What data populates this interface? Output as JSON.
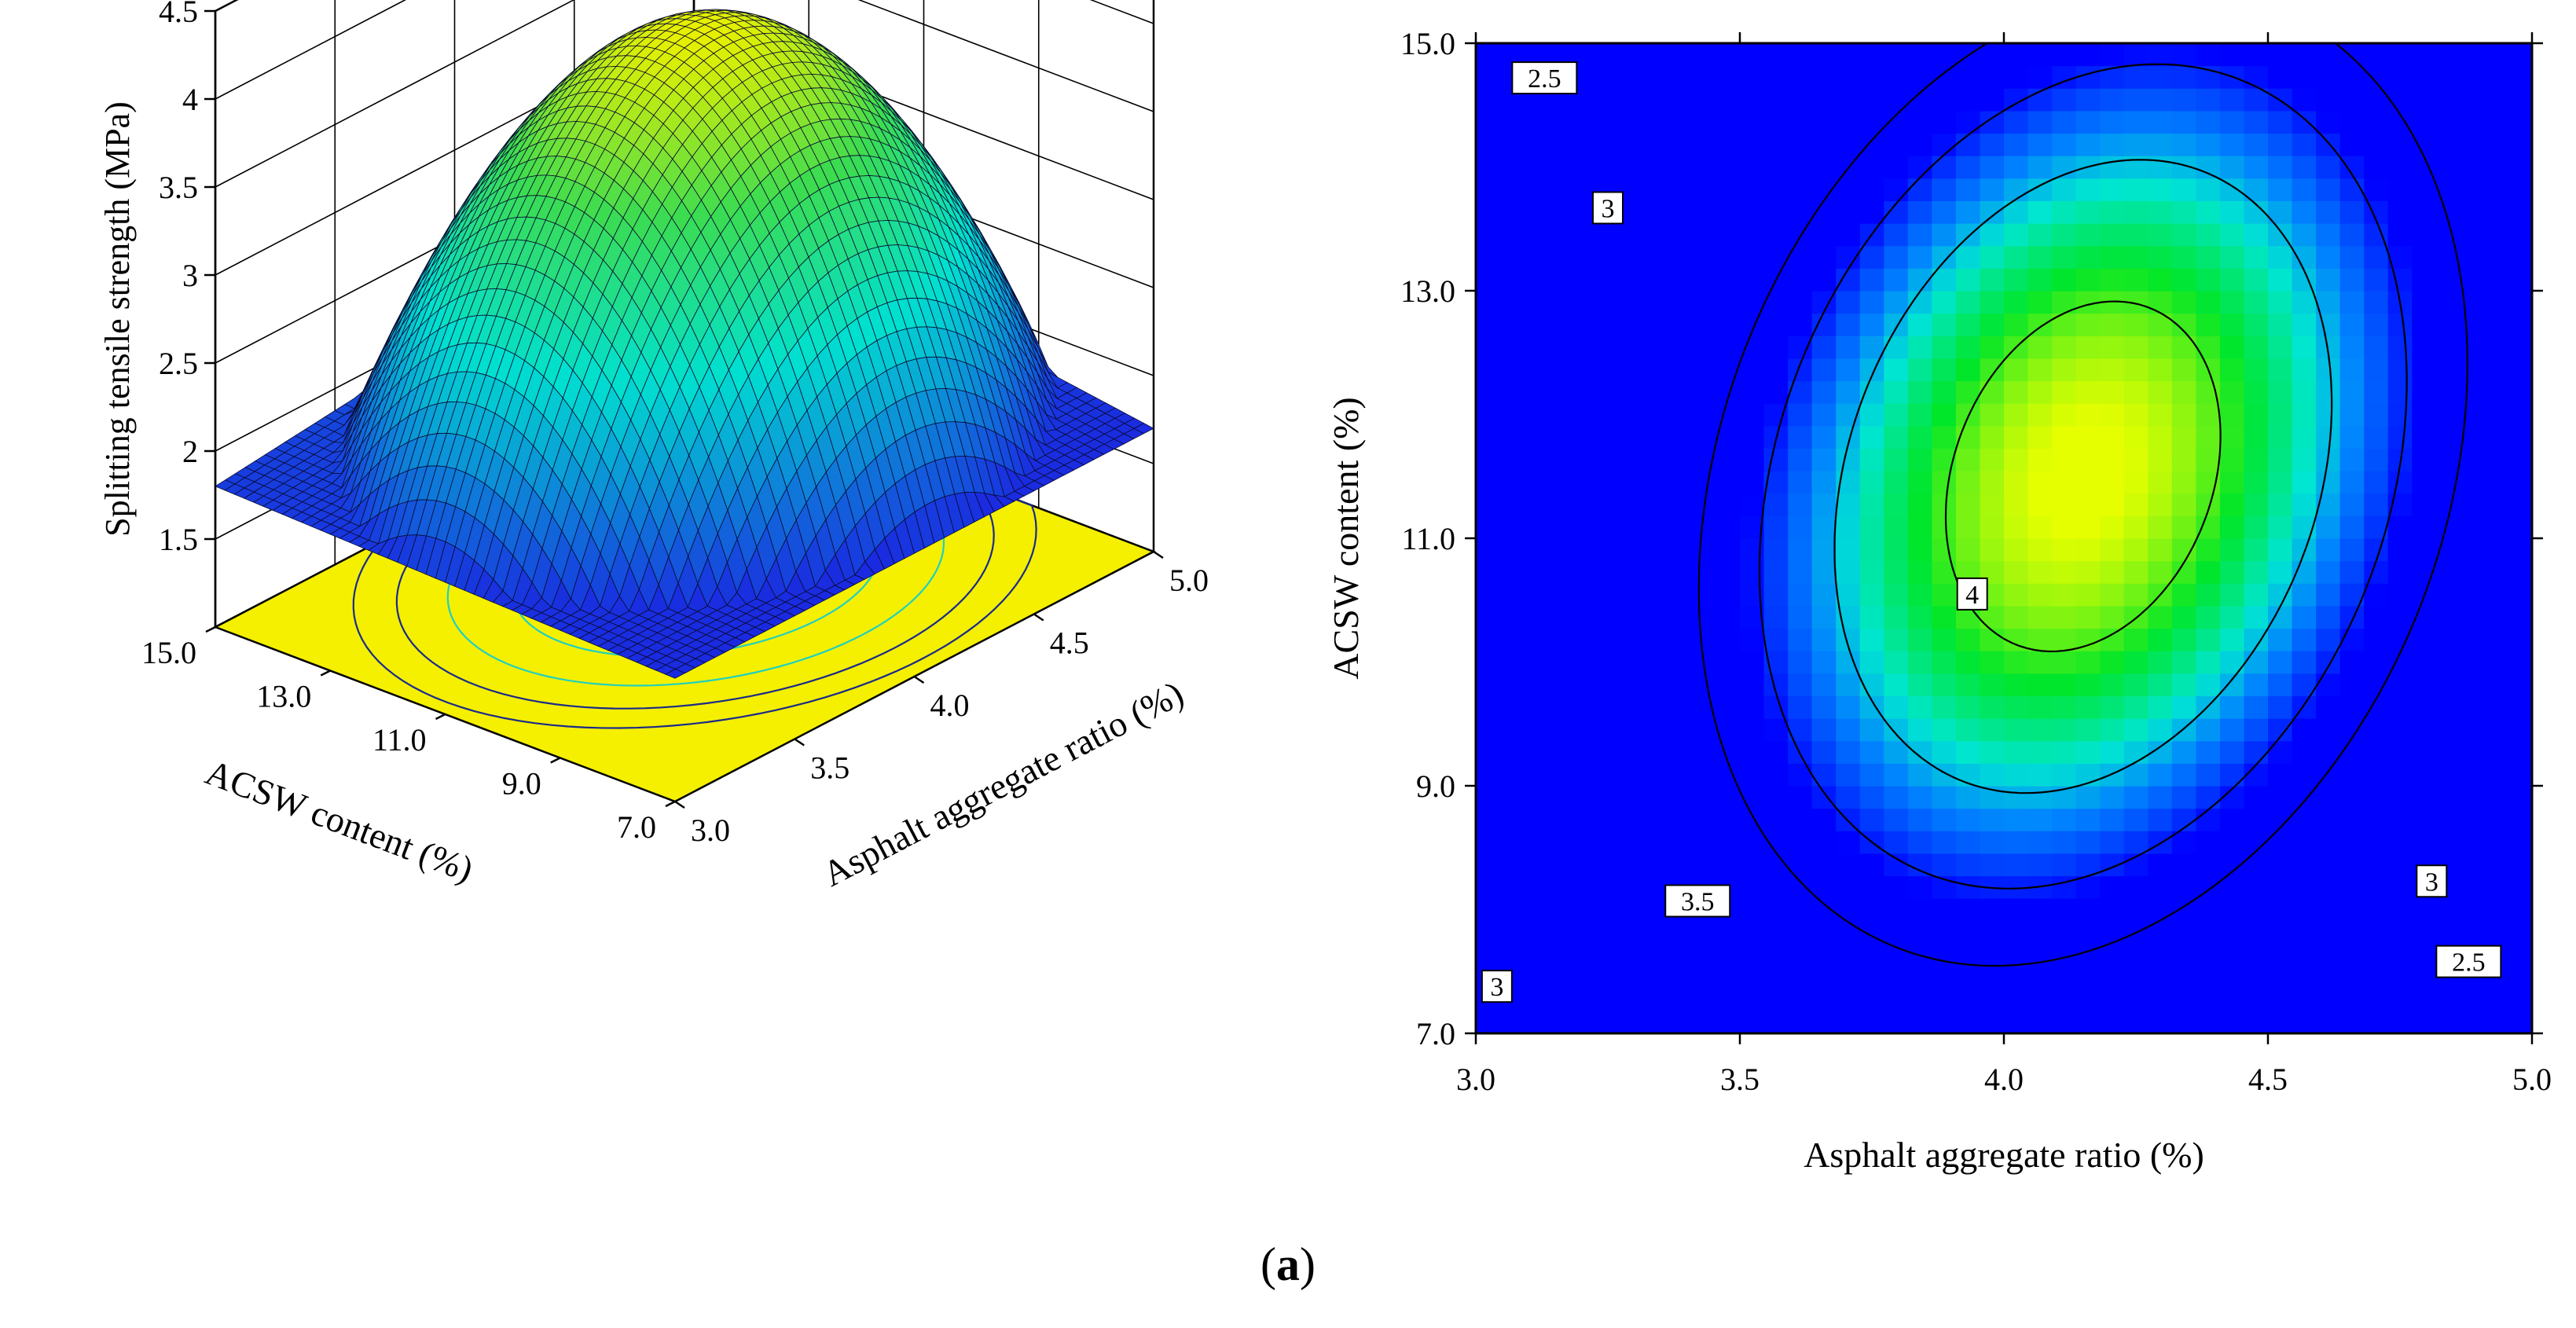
{
  "caption": {
    "open": "(",
    "letter": "a",
    "close": ")"
  },
  "colors": {
    "surface_low": "#1a2ae0",
    "surface_mid": "#00e0d0",
    "surface_high": "#e8f000",
    "floor_fill": "#f4f000",
    "floor_contour_dark": "#1a2a8a",
    "floor_contour_light": "#20d0c0",
    "map_low": "#0000ff",
    "map_high": "#e6ff00"
  },
  "chart_data": [
    {
      "type": "surface3d",
      "title": "",
      "zlabel": "Splitting tensile strength (MPa)",
      "xlabel": "Asphalt aggregate ratio (%)",
      "ylabel": "ACSW  content (%)",
      "x_ticks": [
        "3.0",
        "3.5",
        "4.0",
        "4.5",
        "5.0"
      ],
      "y_ticks": [
        "7.0",
        "9.0",
        "11.0",
        "13.0",
        "15.0"
      ],
      "z_ticks": [
        "1.5",
        "2",
        "2.5",
        "3",
        "3.5",
        "4",
        "4.5"
      ],
      "xlim": [
        3.0,
        5.0
      ],
      "ylim": [
        7.0,
        15.0
      ],
      "zlim": [
        1.0,
        4.5
      ],
      "model": {
        "peak_x": 4.1,
        "peak_y": 11.2,
        "peak_z": 4.1,
        "corners": {
          "x3_y7": 1.7,
          "x3_y15": 1.8,
          "x5_y7": 1.7,
          "x5_y15": 2.1
        }
      },
      "floor_contour_levels": [
        2.0,
        2.5,
        3.0,
        3.5,
        4.0
      ]
    },
    {
      "type": "contour",
      "title": "",
      "xlabel": "Asphalt aggregate ratio (%)",
      "ylabel": "ACSW  content (%)",
      "x_ticks": [
        "3.0",
        "3.5",
        "4.0",
        "4.5",
        "5.0"
      ],
      "y_ticks": [
        "7.0",
        "9.0",
        "11.0",
        "13.0",
        "15.0"
      ],
      "xlim": [
        3.0,
        5.0
      ],
      "ylim": [
        7.0,
        15.0
      ],
      "levels": [
        2.5,
        3.0,
        3.5,
        4.0
      ],
      "contour_labels": [
        {
          "text": "2.5",
          "x": 3.13,
          "y": 14.72
        },
        {
          "text": "3",
          "x": 3.25,
          "y": 13.67
        },
        {
          "text": "4",
          "x": 3.94,
          "y": 10.55
        },
        {
          "text": "3.5",
          "x": 3.42,
          "y": 8.07
        },
        {
          "text": "3",
          "x": 4.81,
          "y": 8.23
        },
        {
          "text": "2.5",
          "x": 4.88,
          "y": 7.58
        },
        {
          "text": "3",
          "x": 3.04,
          "y": 7.38
        }
      ]
    }
  ]
}
